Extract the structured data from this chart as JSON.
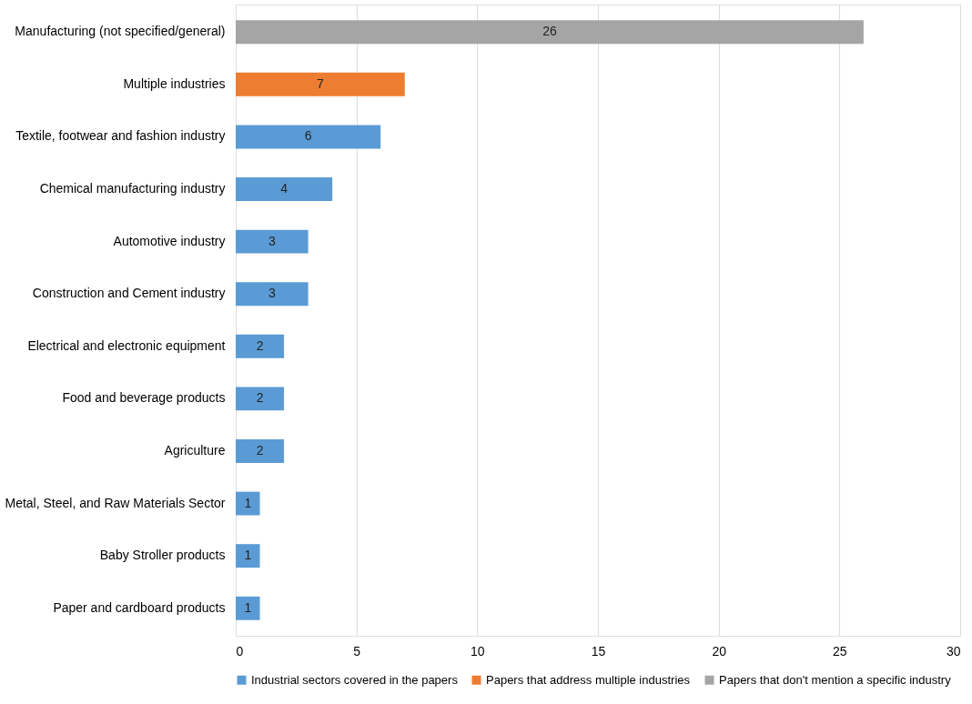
{
  "chart_data": {
    "type": "bar",
    "orientation": "horizontal",
    "categories": [
      "Manufacturing (not specified/general)",
      "Multiple industries",
      "Textile, footwear and fashion industry",
      "Chemical manufacturing industry",
      "Automotive industry",
      "Construction and Cement industry",
      "Electrical and electronic equipment",
      "Food and beverage products",
      "Agriculture",
      "Metal, Steel, and Raw Materials Sector",
      "Baby Stroller products",
      "Paper and cardboard products"
    ],
    "series": [
      {
        "name": "Industrial sectors covered in the papers",
        "color": "#5b9bd5",
        "values": [
          null,
          null,
          6,
          4,
          3,
          3,
          2,
          2,
          2,
          1,
          1,
          1
        ]
      },
      {
        "name": "Papers that address multiple industries",
        "color": "#ed7d31",
        "values": [
          null,
          7,
          null,
          null,
          null,
          null,
          null,
          null,
          null,
          null,
          null,
          null
        ]
      },
      {
        "name": "Papers that don't mention a specific industry",
        "color": "#a5a5a5",
        "values": [
          26,
          null,
          null,
          null,
          null,
          null,
          null,
          null,
          null,
          null,
          null,
          null
        ]
      }
    ],
    "xlim": [
      0,
      30
    ],
    "xticks": [
      0,
      5,
      10,
      15,
      20,
      25,
      30
    ],
    "grid": "x",
    "legend": "bottom",
    "data_labels": true
  }
}
